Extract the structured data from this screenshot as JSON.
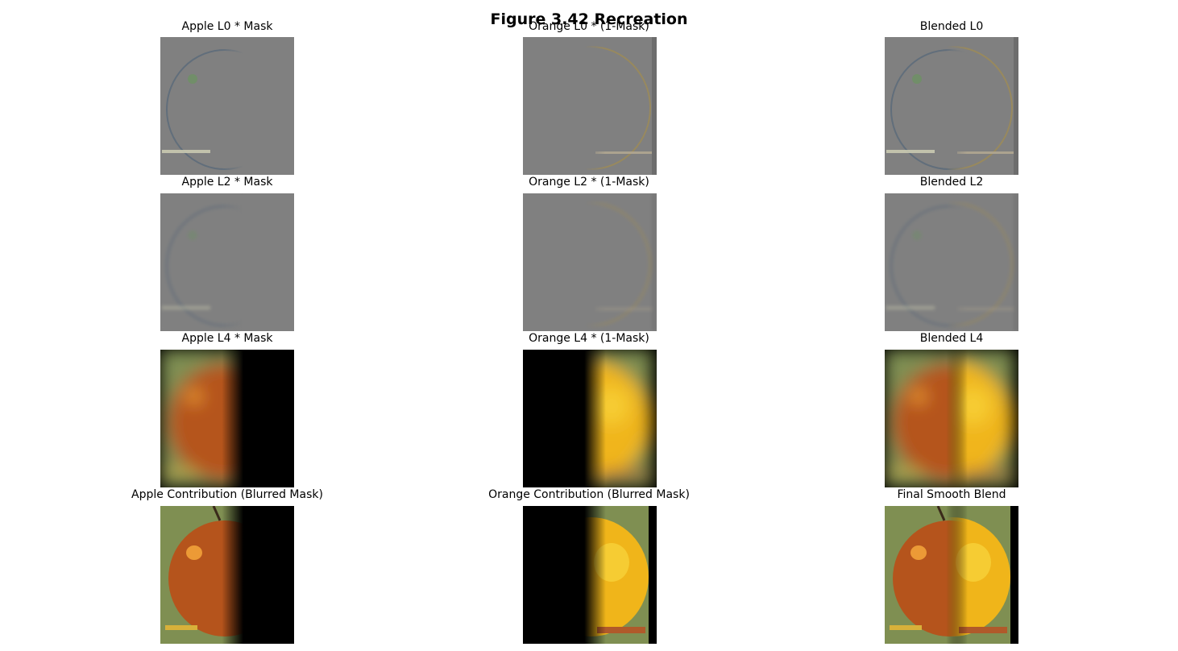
{
  "figure": {
    "title": "Figure 3.42 Recreation",
    "panels": [
      [
        {
          "caption": "Apple L0 * Mask",
          "kind": "lap-apple",
          "level": 0
        },
        {
          "caption": "Orange L0 * (1-Mask)",
          "kind": "lap-orange",
          "level": 0
        },
        {
          "caption": "Blended L0",
          "kind": "lap-blend",
          "level": 0
        }
      ],
      [
        {
          "caption": "Apple L2 * Mask",
          "kind": "lap-apple",
          "level": 2
        },
        {
          "caption": "Orange L2 * (1-Mask)",
          "kind": "lap-orange",
          "level": 2
        },
        {
          "caption": "Blended L2",
          "kind": "lap-blend",
          "level": 2
        }
      ],
      [
        {
          "caption": "Apple L4 * Mask",
          "kind": "blur-apple",
          "level": 4
        },
        {
          "caption": "Orange L4 * (1-Mask)",
          "kind": "blur-orange",
          "level": 4
        },
        {
          "caption": "Blended L4",
          "kind": "blur-blend",
          "level": 4
        }
      ],
      [
        {
          "caption": "Apple Contribution (Blurred Mask)",
          "kind": "full-apple",
          "level": null
        },
        {
          "caption": "Orange Contribution (Blurred Mask)",
          "kind": "full-orange",
          "level": null
        },
        {
          "caption": "Final Smooth Blend",
          "kind": "full-blend",
          "level": null
        }
      ]
    ]
  },
  "colors": {
    "neutral_gray": "#808080",
    "apple_red": "#b5541c",
    "apple_highlight": "#f2a23a",
    "orange_yellow": "#f0b51a",
    "background_green": "#7f8f52"
  }
}
